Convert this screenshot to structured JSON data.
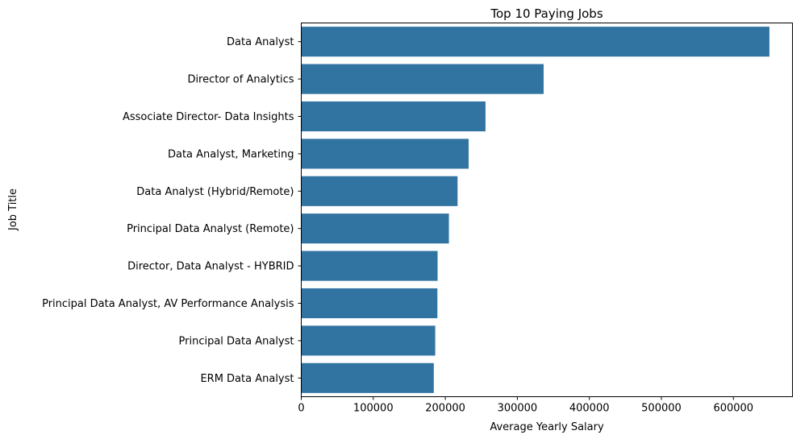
{
  "colors": {
    "bar": "#3274a1",
    "axis": "#000000",
    "background": "#ffffff"
  },
  "chart_data": {
    "type": "bar",
    "orientation": "horizontal",
    "title": "Top 10 Paying Jobs",
    "xlabel": "Average Yearly Salary",
    "ylabel": "Job Title",
    "categories": [
      "Data Analyst",
      "Director of Analytics",
      "Associate Director- Data Insights",
      "Data Analyst, Marketing",
      "Data Analyst (Hybrid/Remote)",
      "Principal Data Analyst (Remote)",
      "Director, Data Analyst - HYBRID",
      "Principal Data Analyst, AV Performance Analysis",
      "Principal Data Analyst",
      "ERM Data Analyst"
    ],
    "values": [
      650000,
      336500,
      255800,
      232400,
      217000,
      205000,
      189300,
      189000,
      186000,
      184000
    ],
    "xlim": [
      0,
      682000
    ],
    "xticks": [
      0,
      100000,
      200000,
      300000,
      400000,
      500000,
      600000
    ],
    "xtick_labels": [
      "0",
      "100000",
      "200000",
      "300000",
      "400000",
      "500000",
      "600000"
    ],
    "grid": false,
    "legend": "none"
  }
}
